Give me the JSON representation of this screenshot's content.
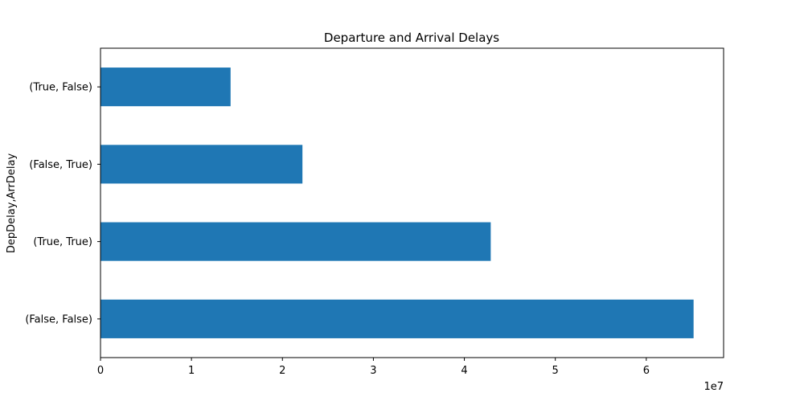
{
  "chart_data": {
    "type": "bar",
    "orientation": "horizontal",
    "title": "Departure and Arrival Delays",
    "xlabel": "",
    "ylabel": "DepDelay,ArrDelay",
    "x_scale_label": "1e7",
    "categories": [
      "(False, False)",
      "(True, True)",
      "(False, True)",
      "(True, False)"
    ],
    "values": [
      65200000,
      42900000,
      22200000,
      14300000
    ],
    "xlim": [
      0,
      68500000
    ],
    "x_ticks": [
      0,
      10000000,
      20000000,
      30000000,
      40000000,
      50000000,
      60000000
    ],
    "x_tick_labels": [
      "0",
      "1",
      "2",
      "3",
      "4",
      "5",
      "6"
    ],
    "bar_color": "#1f77b4",
    "grid": false,
    "legend": "none"
  }
}
